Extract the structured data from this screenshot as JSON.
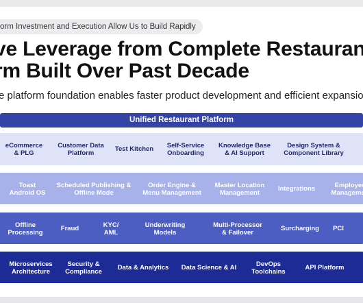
{
  "header": {
    "tag": "orm Investment and Execution Allow Us to Build Rapidly",
    "title_line1": "ve Leverage from Complete Restaurant",
    "title_line2": "rm Built Over Past Decade",
    "subtitle": "e platform foundation enables faster product development and efficient expansion to"
  },
  "platform": {
    "header": "Unified Restaurant Platform",
    "rows": [
      [
        {
          "line1": "eCommerce",
          "line2": "& PLG"
        },
        {
          "line1": "Customer Data",
          "line2": "Platform"
        },
        {
          "line1": "Test Kitchen",
          "line2": ""
        },
        {
          "line1": "Self-Service",
          "line2": "Onboarding"
        },
        {
          "line1": "Knowledge Base",
          "line2": "& AI Support"
        },
        {
          "line1": "Design System &",
          "line2": "Component Library"
        }
      ],
      [
        {
          "line1": "Toast",
          "line2": "Android OS"
        },
        {
          "line1": "Scheduled Publishing &",
          "line2": "Offline Mode"
        },
        {
          "line1": "Order Engine &",
          "line2": "Menu Management"
        },
        {
          "line1": "Master Location",
          "line2": "Management"
        },
        {
          "line1": "Integrations",
          "line2": ""
        },
        {
          "line1": "Employee",
          "line2": "Managemen"
        }
      ],
      [
        {
          "line1": "Offline",
          "line2": "Processing"
        },
        {
          "line1": "Fraud",
          "line2": ""
        },
        {
          "line1": "KYC/",
          "line2": "AML"
        },
        {
          "line1": "Underwriting",
          "line2": "Models"
        },
        {
          "line1": "Multi-Processor",
          "line2": "& Failover"
        },
        {
          "line1": "Surcharging",
          "line2": ""
        },
        {
          "line1": "PCI",
          "line2": ""
        }
      ],
      [
        {
          "line1": "Microservices",
          "line2": "Architecture"
        },
        {
          "line1": "Security &",
          "line2": "Compliance"
        },
        {
          "line1": "Data & Analytics",
          "line2": ""
        },
        {
          "line1": "Data Science & AI",
          "line2": ""
        },
        {
          "line1": "DevOps",
          "line2": "Toolchains"
        },
        {
          "line1": "API Platform",
          "line2": ""
        }
      ]
    ]
  }
}
